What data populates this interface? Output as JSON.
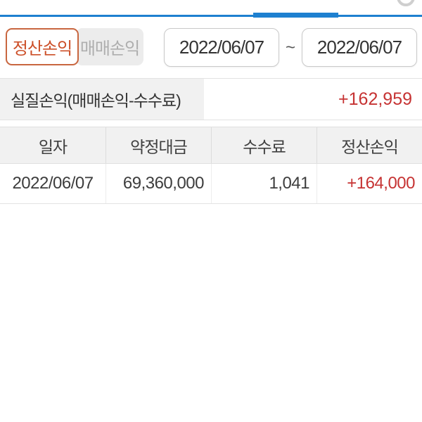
{
  "top": {
    "indicator_color": "#1e80d0",
    "corner_icon": "circle-arc-icon"
  },
  "tabs": [
    {
      "label": "정산손익",
      "selected": true
    },
    {
      "label": "매매손익",
      "selected": false
    }
  ],
  "date_range": {
    "start": "2022/06/07",
    "separator": "~",
    "end": "2022/06/07"
  },
  "summary": {
    "label": "실질손익(매매손익-수수료)",
    "value": "+162,959",
    "value_color": "#c63333"
  },
  "table": {
    "headers": [
      "일자",
      "약정대금",
      "수수료",
      "정산손익"
    ],
    "rows": [
      {
        "cells": [
          "2022/06/07",
          "69,360,000",
          "1,041",
          "+164,000"
        ],
        "pnl_color": "#c63333"
      }
    ]
  },
  "colors": {
    "accent_blue": "#1e80d0",
    "selected_tab_border": "#c8663f",
    "selected_tab_text": "#cc4f28",
    "unselected_tab_bg": "#ececec",
    "unselected_tab_text": "#aeaeae",
    "panel_gray": "#f1f1f1",
    "negative_red": "#c63333",
    "text_dark": "#3d3d3d"
  }
}
